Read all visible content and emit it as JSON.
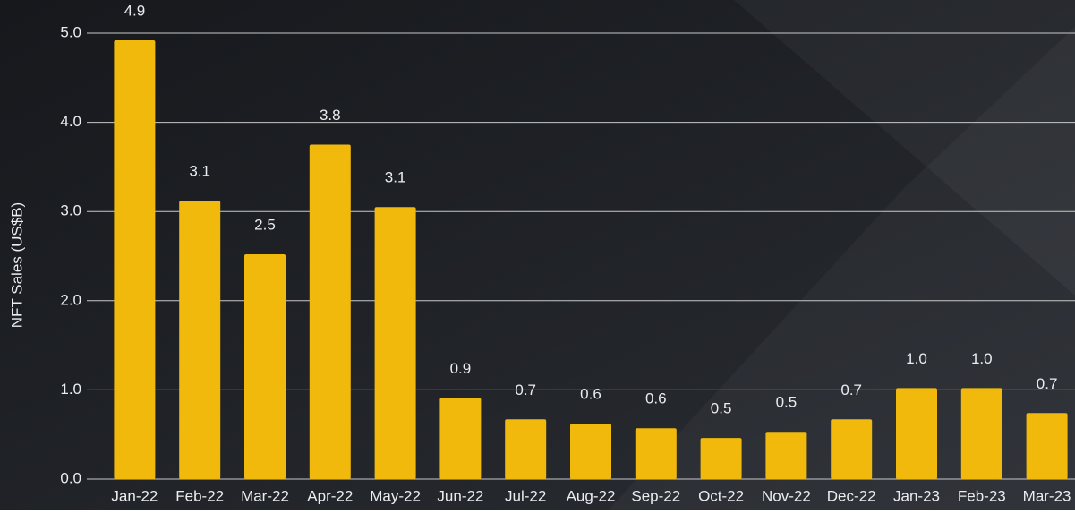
{
  "chart_data": {
    "type": "bar",
    "y_label": "NFT Sales (US$B)",
    "categories": [
      "Jan-22",
      "Feb-22",
      "Mar-22",
      "Apr-22",
      "May-22",
      "Jun-22",
      "Jul-22",
      "Aug-22",
      "Sep-22",
      "Oct-22",
      "Nov-22",
      "Dec-22",
      "Jan-23",
      "Feb-23",
      "Mar-23"
    ],
    "values": [
      4.92,
      3.12,
      2.52,
      3.75,
      3.05,
      0.91,
      0.67,
      0.62,
      0.57,
      0.46,
      0.53,
      0.67,
      1.02,
      1.02,
      0.74
    ],
    "value_labels": [
      "4.9",
      "3.1",
      "2.5",
      "3.8",
      "3.1",
      "0.9",
      "0.7",
      "0.6",
      "0.6",
      "0.5",
      "0.5",
      "0.7",
      "1.0",
      "1.0",
      "0.7"
    ],
    "color": "#f0b90b",
    "ylim": [
      0,
      5
    ],
    "yticks": [
      {
        "value": 0,
        "label": "0.0"
      },
      {
        "value": 1,
        "label": "1.0"
      },
      {
        "value": 2,
        "label": "2.0"
      },
      {
        "value": 3,
        "label": "3.0"
      },
      {
        "value": 4,
        "label": "4.0"
      },
      {
        "value": 5,
        "label": "5.0"
      }
    ],
    "grid": true
  }
}
